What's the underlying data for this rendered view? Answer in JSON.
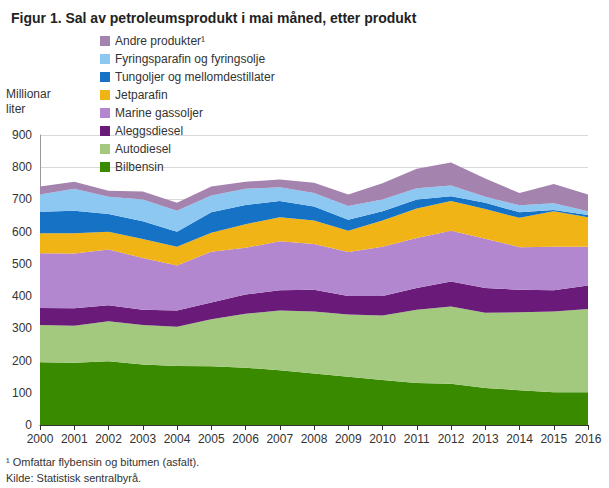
{
  "chart_data": {
    "type": "area",
    "title": "Figur 1. Sal av petroleumsprodukt i mai måned, etter produkt",
    "ylabel": "Millionar\nliter",
    "annotations": [
      "¹ Omfattar flybensin og bitumen (asfalt).",
      "Kilde: Statistisk sentralbyrå."
    ],
    "categories": [
      "2000",
      "2001",
      "2002",
      "2003",
      "2004",
      "2005",
      "2006",
      "2007",
      "2008",
      "2009",
      "2010",
      "2011",
      "2012",
      "2013",
      "2014",
      "2015",
      "2016"
    ],
    "stacked": true,
    "grid": true,
    "legend": "top-left",
    "ylim": [
      0,
      900
    ],
    "yticks": [
      0,
      100,
      200,
      300,
      400,
      500,
      600,
      700,
      800,
      900
    ],
    "series": [
      {
        "name": "Bilbensin",
        "color": "#3a8a00",
        "values": [
          195,
          193,
          198,
          188,
          183,
          182,
          178,
          170,
          160,
          150,
          140,
          130,
          128,
          115,
          108,
          102,
          102
        ]
      },
      {
        "name": "Autodiesel",
        "color": "#a3c97f",
        "values": [
          115,
          115,
          124,
          122,
          122,
          146,
          167,
          185,
          192,
          193,
          200,
          228,
          240,
          233,
          242,
          250,
          258
        ]
      },
      {
        "name": "Aleggsdiesel",
        "color": "#6a1b7a",
        "values": [
          53,
          54,
          50,
          48,
          50,
          52,
          60,
          63,
          68,
          57,
          60,
          67,
          77,
          77,
          70,
          66,
          73
        ]
      },
      {
        "name": "Marine gassoljer",
        "color": "#b387cf",
        "values": [
          170,
          170,
          173,
          160,
          140,
          158,
          145,
          152,
          142,
          137,
          153,
          155,
          158,
          153,
          132,
          135,
          120
        ]
      },
      {
        "name": "Jetparafin",
        "color": "#f1b417",
        "values": [
          62,
          63,
          55,
          59,
          58,
          59,
          73,
          75,
          73,
          66,
          82,
          92,
          92,
          92,
          91,
          110,
          92
        ]
      },
      {
        "name": "Tungoljer og mellomdestillater",
        "color": "#1672c4",
        "values": [
          67,
          70,
          55,
          55,
          47,
          63,
          60,
          50,
          43,
          34,
          28,
          28,
          15,
          20,
          17,
          4,
          7
        ]
      },
      {
        "name": "Fyringsparafin og fyringsolje",
        "color": "#8cc8f2",
        "values": [
          53,
          68,
          53,
          68,
          65,
          52,
          50,
          43,
          42,
          43,
          37,
          35,
          33,
          18,
          22,
          21,
          11
        ]
      },
      {
        "name": "Andre produkter¹",
        "color": "#a483ae",
        "values": [
          25,
          22,
          19,
          25,
          25,
          28,
          22,
          24,
          32,
          35,
          50,
          60,
          72,
          57,
          38,
          60,
          52
        ]
      }
    ]
  }
}
